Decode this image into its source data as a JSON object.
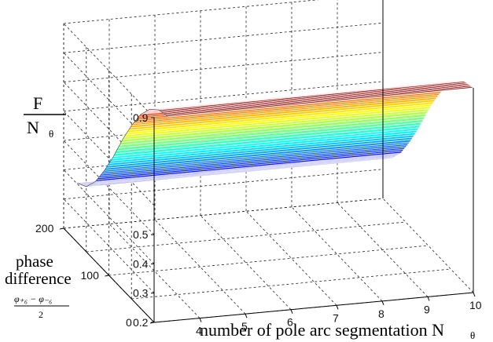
{
  "chart_data": {
    "type": "surface3d",
    "title": "",
    "zlabel": {
      "numerator": "F",
      "denominator": "N",
      "subscript": "θ"
    },
    "xlabel": {
      "text": "number of pole arc segmentation N",
      "subscript": "θ"
    },
    "ylabel": {
      "line1": "phase",
      "line2": "difference",
      "frac_num": "φ₊₆ − φ₋₆",
      "frac_den": "2"
    },
    "x_ticks": [
      "4",
      "5",
      "6",
      "7",
      "8",
      "9",
      "10"
    ],
    "x_tick_values": [
      4,
      5,
      6,
      7,
      8,
      9,
      10
    ],
    "y_ticks": [
      "0",
      "100",
      "200"
    ],
    "y_tick_values": [
      0,
      100,
      200
    ],
    "z_ticks": [
      "0.2",
      "0.3",
      "0.4",
      "0.5",
      "0.9"
    ],
    "z_tick_values": [
      0.2,
      0.3,
      0.4,
      0.5,
      0.9
    ],
    "xlim": [
      3,
      10
    ],
    "ylim": [
      0,
      200
    ],
    "zlim": [
      0.2,
      0.9
    ],
    "grid": true,
    "colormap": "jet",
    "surface_profile": {
      "phase_difference": [
        0,
        20,
        40,
        60,
        80,
        100,
        120,
        140,
        160,
        180,
        200
      ],
      "F_over_Ntheta": [
        0.9,
        0.89,
        0.86,
        0.81,
        0.74,
        0.66,
        0.57,
        0.49,
        0.42,
        0.37,
        0.35
      ]
    }
  }
}
